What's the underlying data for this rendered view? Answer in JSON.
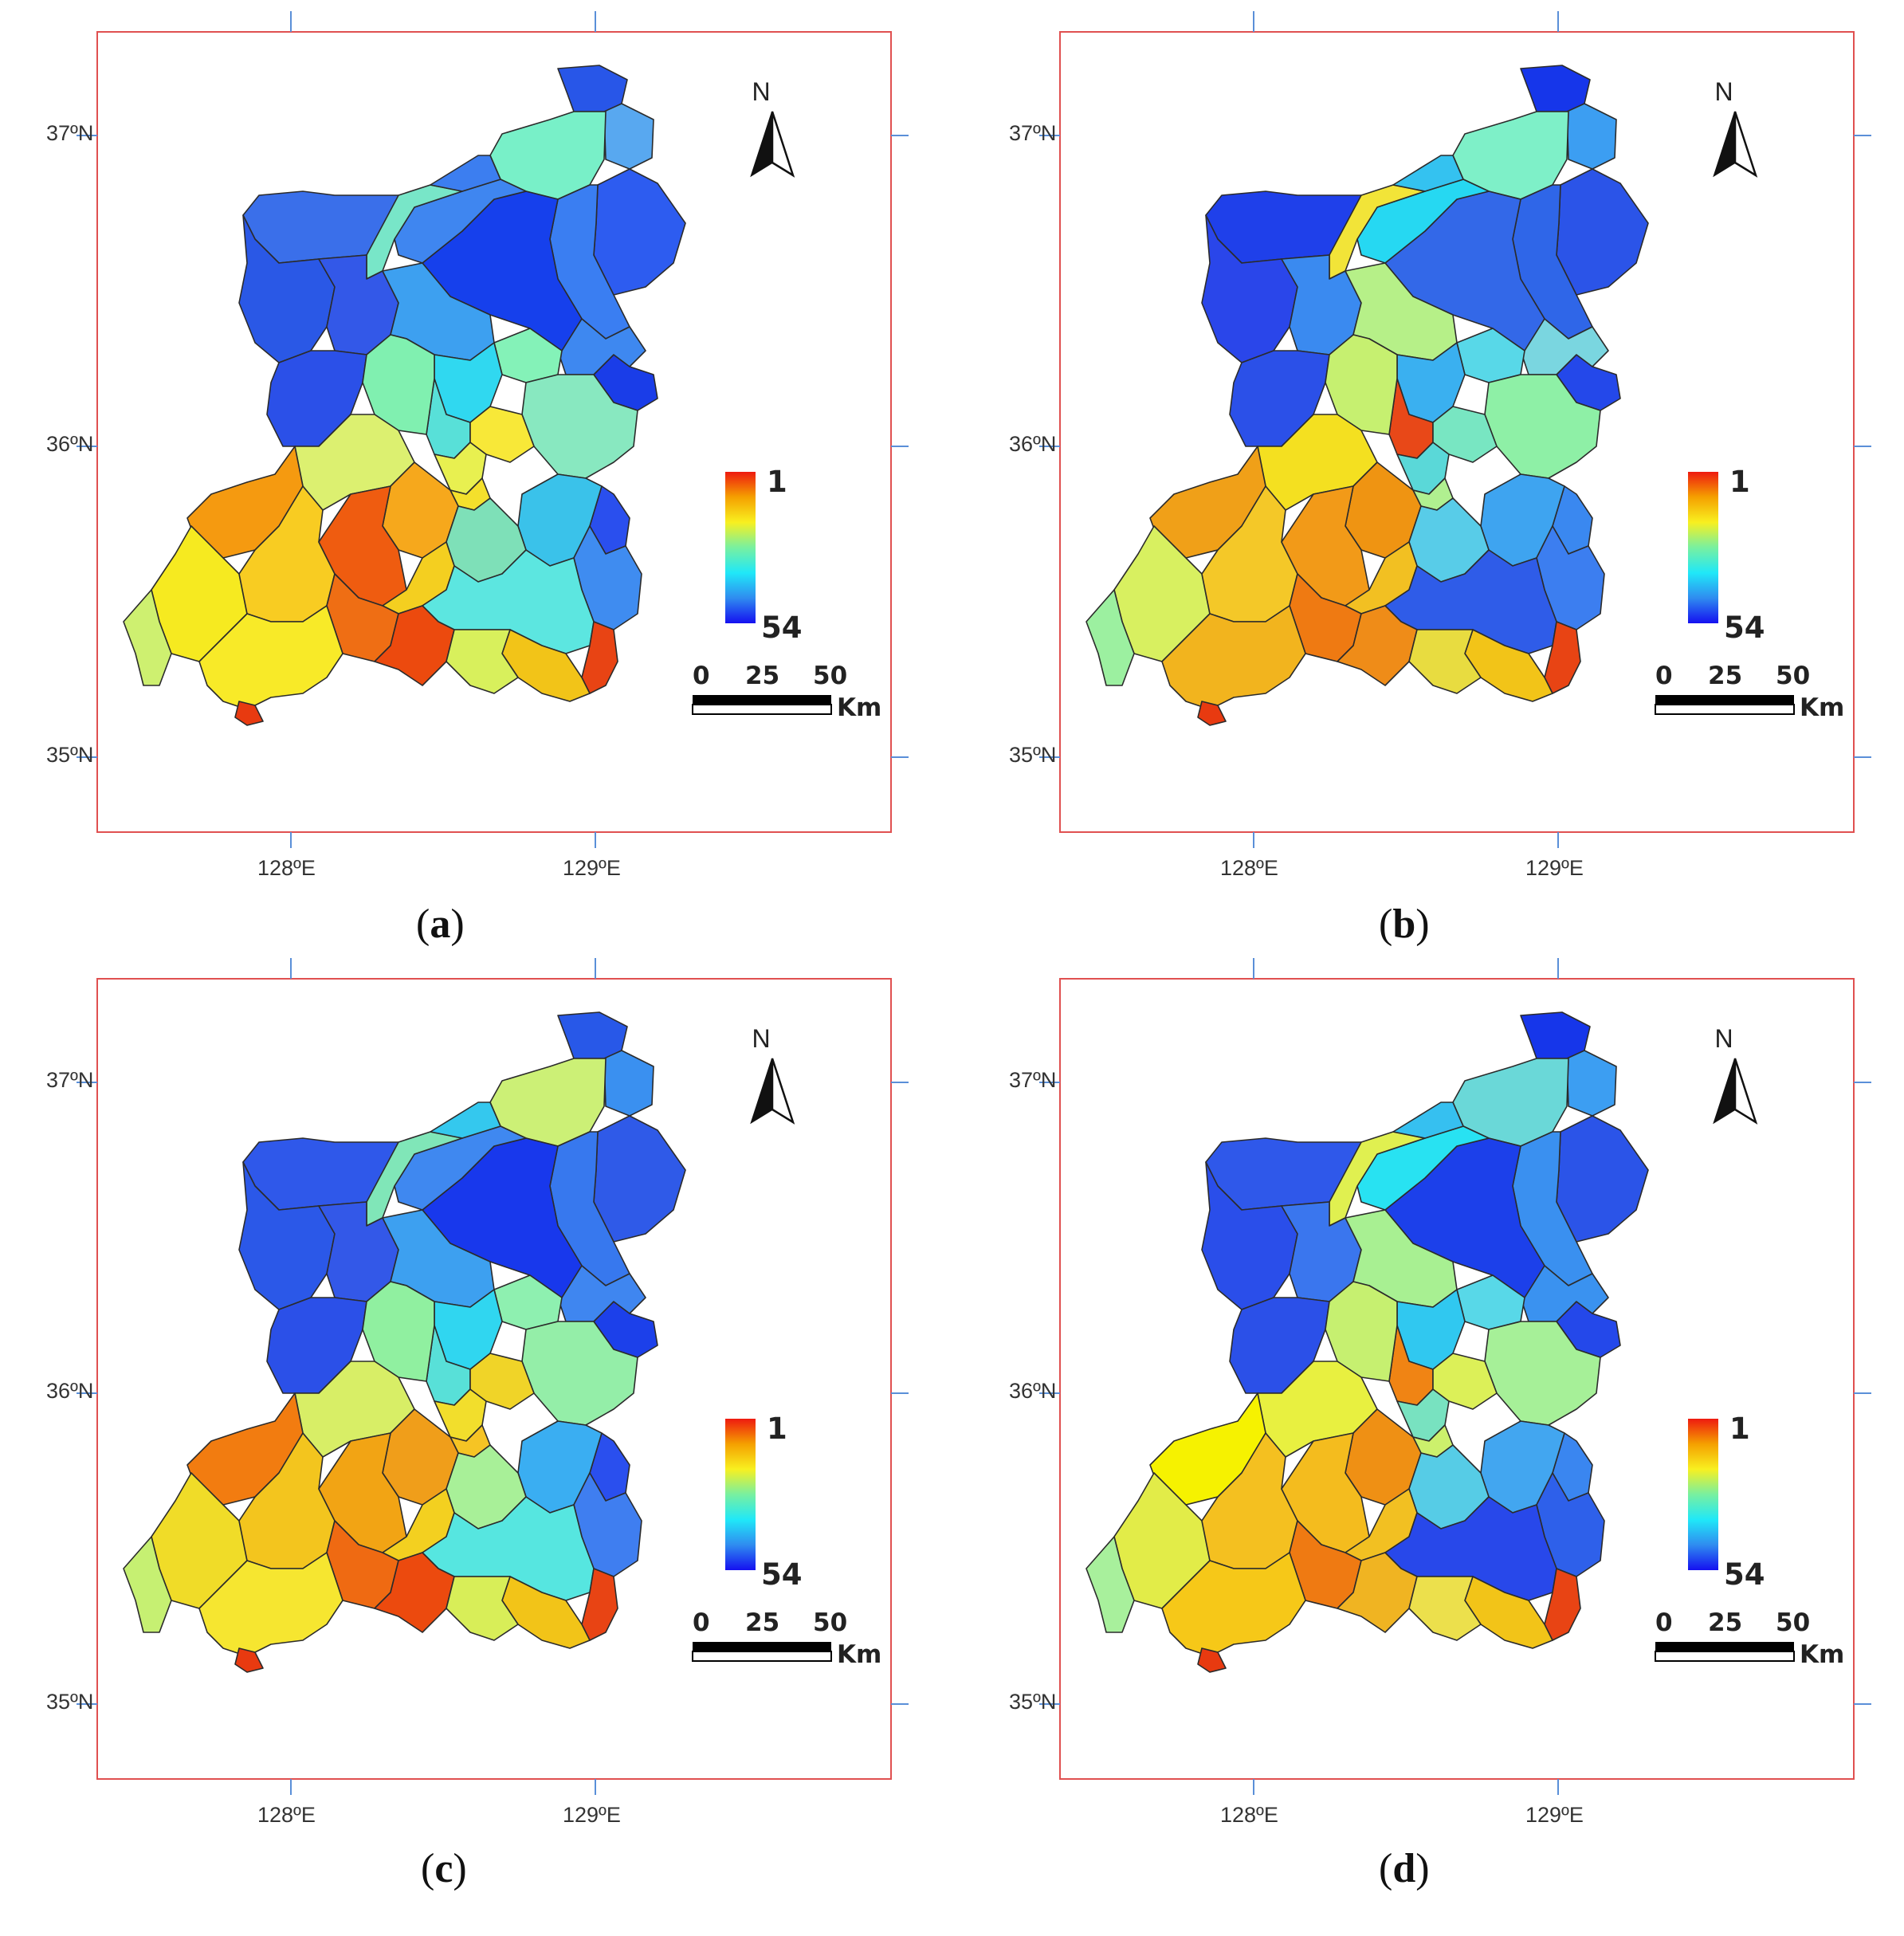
{
  "panels": [
    {
      "id": "a",
      "caption_letter": "a",
      "colors": {
        "R1": "#2856e8",
        "R2": "#58a8f0",
        "R3": "#78f0c8",
        "R4": "#2d5cf0",
        "R5": "#3a7ef2",
        "R6": "#3a6fea",
        "R7": "#1640ec",
        "R8": "#3f86f0",
        "R9": "#78e6c8",
        "R10": "#3c7ef0",
        "R11": "#2a58e6",
        "R12": "#1a3de8",
        "R13": "#3e88f0",
        "R14": "#3358e8",
        "R15": "#3da0f0",
        "R16": "#84f2b8",
        "R17": "#30d8f0",
        "R18": "#88e8c0",
        "R19": "#2b50e8",
        "R20": "#58e0d8",
        "R21": "#80f0b0",
        "R22": "#e8f050",
        "R23": "#f4e02c",
        "R24": "#f8e838",
        "R25": "#dcf070",
        "R26": "#f59a10",
        "R27": "#f6ea20",
        "R28": "#f8cc22",
        "R29": "#f6a81c",
        "R30": "#2a4fee",
        "R31": "#3ac2ea",
        "R32": "#7ee0b8",
        "R33": "#3f8cf0",
        "R34": "#cef070",
        "R35": "#ef5c10",
        "R36": "#f4cf20",
        "R37": "#ef6e14",
        "R38": "#f8ea28",
        "R39": "#5ce6e0",
        "R40": "#ec4a0e",
        "R41": "#e84414",
        "R42": "#f2c418",
        "R43": "#e83a10",
        "R44": "#d8f05c"
      }
    },
    {
      "id": "b",
      "caption_letter": "b",
      "colors": {
        "R1": "#1636ea",
        "R2": "#3c9ef2",
        "R3": "#7ef0c8",
        "R4": "#2b54e8",
        "R5": "#2f66e8",
        "R6": "#1f40ea",
        "R7": "#3368e8",
        "R8": "#26d8f2",
        "R9": "#f2e438",
        "R10": "#34c2f0",
        "R11": "#2a46ea",
        "R12": "#2448ea",
        "R13": "#7ad6e0",
        "R14": "#3a8af0",
        "R15": "#b6f088",
        "R16": "#58d8e8",
        "R17": "#3ab0f0",
        "R18": "#8ef0a6",
        "R19": "#2b50e8",
        "R20": "#e84818",
        "R21": "#c6f070",
        "R22": "#5ad8d8",
        "R23": "#b0f090",
        "R24": "#78e6c2",
        "R25": "#f4e020",
        "R26": "#f0a018",
        "R27": "#d8f060",
        "R28": "#f4c828",
        "R29": "#ef9412",
        "R30": "#3a88f0",
        "R31": "#3ea4f0",
        "R32": "#58cce8",
        "R33": "#3c7ef0",
        "R34": "#9cf0a0",
        "R35": "#f29a18",
        "R36": "#f2c022",
        "R37": "#ef7a12",
        "R38": "#f2b41e",
        "R39": "#2f5ce8",
        "R40": "#ef8c18",
        "R41": "#e84414",
        "R42": "#f2c418",
        "R43": "#e83a10",
        "R44": "#e8dc40"
      }
    },
    {
      "id": "c",
      "caption_letter": "c",
      "colors": {
        "R1": "#2858e8",
        "R2": "#3a90f0",
        "R3": "#ccf076",
        "R4": "#2f5ae8",
        "R5": "#3778ee",
        "R6": "#2f58ea",
        "R7": "#1838ec",
        "R8": "#3f88f0",
        "R9": "#80e6b8",
        "R10": "#34c8ee",
        "R11": "#2b58e8",
        "R12": "#1c40ea",
        "R13": "#3f86f0",
        "R14": "#3358e8",
        "R15": "#3da0f0",
        "R16": "#8ef0b0",
        "R17": "#30d6f0",
        "R18": "#94eea8",
        "R19": "#2b50e8",
        "R20": "#58e0d8",
        "R21": "#90f0a0",
        "R22": "#f2de2c",
        "R23": "#f6c424",
        "R24": "#f0d428",
        "R25": "#d8ee66",
        "R26": "#f27c10",
        "R27": "#f0dc28",
        "R28": "#f3c51e",
        "R29": "#f09e1a",
        "R30": "#2a4fee",
        "R31": "#3aaef2",
        "R32": "#a8f098",
        "R33": "#3f7ef0",
        "R34": "#c6f072",
        "R35": "#f2a414",
        "R36": "#f3d020",
        "R37": "#ef6a12",
        "R38": "#f6e630",
        "R39": "#56e6e0",
        "R40": "#ec4a0e",
        "R41": "#e84414",
        "R42": "#f2c418",
        "R43": "#e83a10",
        "R44": "#d8ee58"
      }
    },
    {
      "id": "d",
      "caption_letter": "d",
      "colors": {
        "R1": "#1636ea",
        "R2": "#3c9ef2",
        "R3": "#6ad8d8",
        "R4": "#2b54e8",
        "R5": "#3a90f0",
        "R6": "#2f58ea",
        "R7": "#1c40ea",
        "R8": "#28e2f2",
        "R9": "#e0f050",
        "R10": "#36c0f0",
        "R11": "#2a4eea",
        "R12": "#2448ea",
        "R13": "#3a92f0",
        "R14": "#3a76ee",
        "R15": "#a8f092",
        "R16": "#58d8e8",
        "R17": "#30c8f0",
        "R18": "#a6f098",
        "R19": "#2b50e8",
        "R20": "#f08414",
        "R21": "#c6f070",
        "R22": "#78e2c0",
        "R23": "#ccf06c",
        "R24": "#dcf058",
        "R25": "#e8f040",
        "R26": "#f6f200",
        "R27": "#e2ec48",
        "R28": "#f4c020",
        "R29": "#ef9014",
        "R30": "#3a86f0",
        "R31": "#42a6f0",
        "R32": "#56cce6",
        "R33": "#2e60ea",
        "R34": "#a8f09c",
        "R35": "#f4bc1e",
        "R36": "#f2c022",
        "R37": "#ef7a12",
        "R38": "#f6c818",
        "R39": "#2848ea",
        "R40": "#f0b422",
        "R41": "#e84414",
        "R42": "#f2c418",
        "R43": "#e83a10",
        "R44": "#ece04c"
      }
    }
  ],
  "axis_labels": {
    "lat": [
      "37ºN",
      "36ºN",
      "35ºN"
    ],
    "lon": [
      "128ºE",
      "129ºE"
    ]
  },
  "legend": {
    "min_label": "1",
    "max_label": "54",
    "gradient": [
      "#ee1a10",
      "#f5a000",
      "#f8f020",
      "#78f0a0",
      "#20e8f8",
      "#2f8cf0",
      "#1510f0"
    ]
  },
  "scale_bar": {
    "ticks": [
      "0",
      "25",
      "50"
    ],
    "unit": "Km"
  },
  "north_arrow": {
    "label": "N"
  },
  "outline_color": "#e05050",
  "tick_color": "#5a8fd8"
}
